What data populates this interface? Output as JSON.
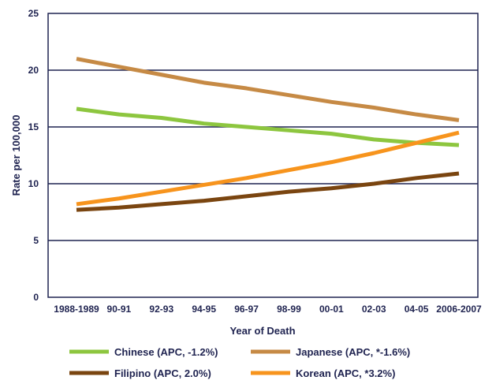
{
  "chart_data": {
    "type": "line",
    "title": "",
    "xlabel": "Year of Death",
    "ylabel": "Rate per 100,000",
    "categories": [
      "1988-1989",
      "90-91",
      "92-93",
      "94-95",
      "96-97",
      "98-99",
      "00-01",
      "02-03",
      "04-05",
      "2006-2007"
    ],
    "ylim": [
      0,
      25
    ],
    "yticks": [
      0,
      5,
      10,
      15,
      20,
      25
    ],
    "grid": true,
    "legend_position": "bottom",
    "series": [
      {
        "name": "Chinese (APC, -1.2%)",
        "color": "#8dc63f",
        "values": [
          16.6,
          16.1,
          15.8,
          15.3,
          15.0,
          14.7,
          14.4,
          13.9,
          13.6,
          13.4
        ]
      },
      {
        "name": "Japanese (APC, *-1.6%)",
        "color": "#c68a45",
        "values": [
          21.0,
          20.3,
          19.6,
          18.9,
          18.4,
          17.8,
          17.2,
          16.7,
          16.1,
          15.6
        ]
      },
      {
        "name": "Filipino (APC, 2.0%)",
        "color": "#7a4510",
        "values": [
          7.7,
          7.9,
          8.2,
          8.5,
          8.9,
          9.3,
          9.6,
          10.0,
          10.5,
          10.9
        ]
      },
      {
        "name": "Korean (APC, *3.2%)",
        "color": "#f7941d",
        "values": [
          8.2,
          8.7,
          9.3,
          9.9,
          10.5,
          11.2,
          11.9,
          12.7,
          13.6,
          14.5
        ]
      }
    ]
  }
}
